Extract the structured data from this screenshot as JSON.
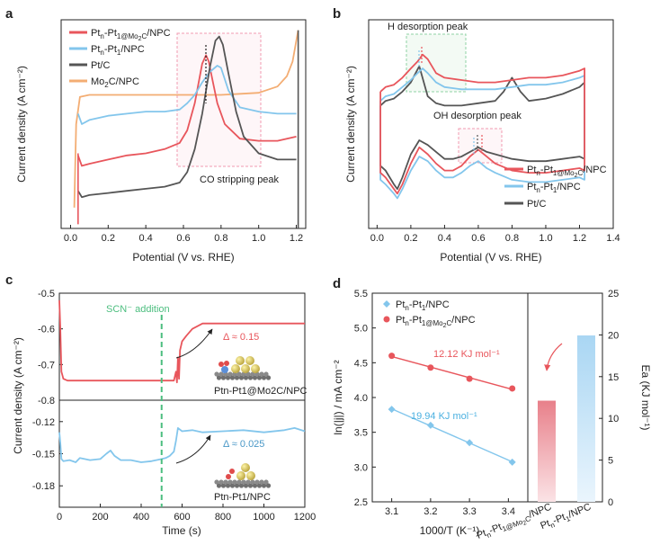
{
  "colors": {
    "red": "#e8565c",
    "blue": "#83c6ec",
    "gray": "#555555",
    "orange": "#f3ad73",
    "green": "#4cbe7f",
    "pink_box": "#f4a1b4",
    "green_box": "#8fd3a4",
    "bar_red": "#e99aa3",
    "bar_blue": "#b9ddf5"
  },
  "chart_data": [
    {
      "panel": "a",
      "type": "line",
      "xlabel": "Potential (V vs. RHE)",
      "ylabel": "Current density (A cm⁻²)",
      "xlim": [
        -0.05,
        1.25
      ],
      "x_ticks": [
        "0.0",
        "0.2",
        "0.4",
        "0.6",
        "0.8",
        "1.0",
        "1.2"
      ],
      "y_ticks_shown": false,
      "legend": [
        "Ptn-Pt1@Mo2C/NPC",
        "Ptn-Pt1/NPC",
        "Pt/C",
        "Mo2C/NPC"
      ],
      "annotation": "CO stripping peak",
      "series": [
        {
          "name": "Ptn-Pt1@Mo2C/NPC",
          "x": [
            0.04,
            0.06,
            0.1,
            0.2,
            0.3,
            0.4,
            0.5,
            0.58,
            0.62,
            0.66,
            0.7,
            0.72,
            0.735,
            0.75,
            0.78,
            0.82,
            0.9,
            1.0,
            1.1,
            1.2
          ],
          "y": [
            0.35,
            0.3,
            0.31,
            0.33,
            0.35,
            0.36,
            0.38,
            0.41,
            0.47,
            0.6,
            0.79,
            0.83,
            0.8,
            0.73,
            0.6,
            0.5,
            0.43,
            0.42,
            0.42,
            0.44
          ]
        },
        {
          "name": "Ptn-Pt1/NPC",
          "x": [
            0.04,
            0.06,
            0.1,
            0.2,
            0.3,
            0.4,
            0.5,
            0.58,
            0.62,
            0.66,
            0.7,
            0.74,
            0.78,
            0.8,
            0.84,
            0.9,
            1.0,
            1.1,
            1.2
          ],
          "y": [
            0.55,
            0.5,
            0.52,
            0.54,
            0.55,
            0.56,
            0.56,
            0.57,
            0.6,
            0.64,
            0.7,
            0.75,
            0.78,
            0.77,
            0.66,
            0.58,
            0.56,
            0.55,
            0.55
          ]
        },
        {
          "name": "Pt/C",
          "x": [
            0.04,
            0.06,
            0.1,
            0.2,
            0.3,
            0.4,
            0.5,
            0.58,
            0.62,
            0.66,
            0.7,
            0.74,
            0.77,
            0.79,
            0.81,
            0.84,
            0.88,
            0.92,
            1.0,
            1.1,
            1.2
          ],
          "y": [
            0.18,
            0.15,
            0.16,
            0.17,
            0.18,
            0.19,
            0.2,
            0.22,
            0.27,
            0.38,
            0.55,
            0.77,
            0.9,
            0.92,
            0.88,
            0.74,
            0.56,
            0.44,
            0.36,
            0.33,
            0.33
          ]
        },
        {
          "name": "Mo2C/NPC",
          "x": [
            0.02,
            0.03,
            0.05,
            0.1,
            0.2,
            0.4,
            0.6,
            0.8,
            1.0,
            1.1,
            1.15,
            1.18,
            1.21
          ],
          "y": [
            0.1,
            0.5,
            0.63,
            0.64,
            0.64,
            0.64,
            0.64,
            0.64,
            0.65,
            0.68,
            0.73,
            0.8,
            0.95
          ]
        }
      ]
    },
    {
      "panel": "b",
      "type": "line",
      "xlabel": "Potential (V vs. RHE)",
      "ylabel": "Current density (A cm⁻²)",
      "xlim": [
        -0.05,
        1.4
      ],
      "x_ticks": [
        "0.0",
        "0.2",
        "0.4",
        "0.6",
        "0.8",
        "1.0",
        "1.2",
        "1.4"
      ],
      "y_ticks_shown": false,
      "legend": [
        "Ptn-Pt1@Mo2C/NPC",
        "Ptn-Pt1/NPC",
        "Pt/C"
      ],
      "annotations": [
        "H desorption peak",
        "OH desorption peak"
      ],
      "series": [
        {
          "name": "Ptn-Pt1@Mo2C/NPC",
          "x": [
            0.02,
            0.05,
            0.1,
            0.15,
            0.2,
            0.24,
            0.27,
            0.3,
            0.35,
            0.4,
            0.5,
            0.6,
            0.7,
            0.8,
            0.9,
            1.0,
            1.1,
            1.2,
            1.23,
            1.23,
            1.2,
            1.1,
            1.0,
            0.9,
            0.8,
            0.7,
            0.65,
            0.6,
            0.55,
            0.5,
            0.45,
            0.4,
            0.35,
            0.3,
            0.25,
            0.2,
            0.15,
            0.12,
            0.1,
            0.05,
            0.02
          ],
          "y": [
            0.64,
            0.66,
            0.67,
            0.7,
            0.74,
            0.77,
            0.8,
            0.78,
            0.72,
            0.7,
            0.69,
            0.68,
            0.68,
            0.69,
            0.7,
            0.7,
            0.71,
            0.73,
            0.74,
            0.3,
            0.31,
            0.3,
            0.29,
            0.29,
            0.3,
            0.33,
            0.36,
            0.39,
            0.36,
            0.32,
            0.3,
            0.3,
            0.33,
            0.37,
            0.4,
            0.33,
            0.24,
            0.2,
            0.22,
            0.27,
            0.29
          ]
        },
        {
          "name": "Ptn-Pt1/NPC",
          "x": [
            0.02,
            0.05,
            0.1,
            0.15,
            0.2,
            0.24,
            0.27,
            0.3,
            0.35,
            0.4,
            0.5,
            0.6,
            0.7,
            0.8,
            0.9,
            1.0,
            1.1,
            1.2,
            1.23,
            1.23,
            1.2,
            1.1,
            1.0,
            0.9,
            0.8,
            0.7,
            0.65,
            0.6,
            0.55,
            0.5,
            0.45,
            0.4,
            0.35,
            0.3,
            0.25,
            0.2,
            0.15,
            0.12,
            0.1,
            0.05,
            0.02
          ],
          "y": [
            0.6,
            0.62,
            0.63,
            0.66,
            0.69,
            0.72,
            0.74,
            0.72,
            0.68,
            0.66,
            0.65,
            0.65,
            0.65,
            0.66,
            0.67,
            0.67,
            0.68,
            0.7,
            0.71,
            0.26,
            0.27,
            0.26,
            0.25,
            0.25,
            0.26,
            0.29,
            0.31,
            0.34,
            0.32,
            0.29,
            0.27,
            0.27,
            0.3,
            0.34,
            0.36,
            0.3,
            0.22,
            0.18,
            0.2,
            0.24,
            0.26
          ]
        },
        {
          "name": "Pt/C",
          "x": [
            0.02,
            0.05,
            0.1,
            0.15,
            0.2,
            0.25,
            0.3,
            0.35,
            0.4,
            0.5,
            0.6,
            0.7,
            0.75,
            0.8,
            0.85,
            0.9,
            1.0,
            1.1,
            1.2,
            1.23,
            1.23,
            1.2,
            1.1,
            1.0,
            0.9,
            0.8,
            0.7,
            0.65,
            0.6,
            0.55,
            0.5,
            0.45,
            0.4,
            0.35,
            0.3,
            0.25,
            0.2,
            0.15,
            0.12,
            0.1,
            0.05,
            0.02
          ],
          "y": [
            0.58,
            0.6,
            0.61,
            0.64,
            0.68,
            0.75,
            0.62,
            0.59,
            0.58,
            0.58,
            0.59,
            0.6,
            0.64,
            0.7,
            0.64,
            0.6,
            0.61,
            0.63,
            0.66,
            0.68,
            0.35,
            0.36,
            0.35,
            0.34,
            0.34,
            0.35,
            0.37,
            0.38,
            0.4,
            0.38,
            0.36,
            0.35,
            0.35,
            0.38,
            0.41,
            0.43,
            0.37,
            0.27,
            0.22,
            0.24,
            0.3,
            0.32
          ]
        }
      ]
    },
    {
      "panel": "c",
      "type": "line",
      "xlabel": "Time (s)",
      "ylabel": "Current density (A cm⁻²)",
      "xlim": [
        0,
        1200
      ],
      "x_ticks": [
        "0",
        "200",
        "400",
        "600",
        "800",
        "1000",
        "1200"
      ],
      "top": {
        "ylim": [
          -0.8,
          -0.5
        ],
        "y_ticks": [
          "-0.5",
          "-0.6",
          "-0.7",
          "-0.8"
        ],
        "label": "Ptn-Pt1@Mo2C/NPC",
        "delta": "Δ ≈ 0.15",
        "x": [
          0,
          5,
          10,
          20,
          40,
          100,
          200,
          300,
          400,
          480,
          500,
          510,
          520,
          560,
          570,
          575,
          580,
          585,
          590,
          600,
          620,
          650,
          700,
          800,
          1000,
          1200
        ],
        "y": [
          -0.52,
          -0.6,
          -0.72,
          -0.74,
          -0.745,
          -0.745,
          -0.745,
          -0.745,
          -0.745,
          -0.745,
          -0.745,
          -0.745,
          -0.745,
          -0.745,
          -0.72,
          -0.75,
          -0.68,
          -0.74,
          -0.66,
          -0.635,
          -0.62,
          -0.6,
          -0.585,
          -0.585,
          -0.585,
          -0.585
        ]
      },
      "bottom": {
        "ylim": [
          -0.2,
          -0.1
        ],
        "y_ticks": [
          "-0.12",
          "-0.15",
          "-0.18"
        ],
        "label": "Ptn-Pt1/NPC",
        "delta": "Δ ≈ 0.025",
        "x": [
          0,
          5,
          10,
          20,
          50,
          80,
          100,
          150,
          200,
          230,
          250,
          270,
          300,
          350,
          400,
          450,
          500,
          520,
          540,
          560,
          570,
          580,
          600,
          650,
          700,
          800,
          900,
          1000,
          1100,
          1150,
          1200
        ],
        "y": [
          -0.13,
          -0.14,
          -0.155,
          -0.157,
          -0.156,
          -0.158,
          -0.154,
          -0.156,
          -0.155,
          -0.15,
          -0.147,
          -0.152,
          -0.156,
          -0.156,
          -0.158,
          -0.157,
          -0.155,
          -0.154,
          -0.152,
          -0.148,
          -0.138,
          -0.126,
          -0.129,
          -0.128,
          -0.13,
          -0.129,
          -0.128,
          -0.13,
          -0.128,
          -0.126,
          -0.129
        ]
      },
      "annotation": "SCN⁻ addition",
      "annotation_x": 500
    },
    {
      "panel": "d",
      "type": "scatter",
      "xlabel": "1000/T (K⁻¹)",
      "ylabel_left": "ln(|j|) / mA cm⁻²",
      "ylabel_right": "Ea (KJ mol⁻¹)",
      "xlim": [
        3.05,
        3.45
      ],
      "ylim_left": [
        2.5,
        5.5
      ],
      "ylim_right": [
        0,
        25
      ],
      "x_ticks": [
        "3.1",
        "3.2",
        "3.3",
        "3.4"
      ],
      "y_ticks_left": [
        "2.5",
        "3.0",
        "3.5",
        "4.0",
        "4.5",
        "5.0",
        "5.5"
      ],
      "y_ticks_right": [
        "0",
        "5",
        "10",
        "15",
        "20",
        "25"
      ],
      "legend": [
        "Ptn-Pt1/NPC",
        "Ptn-Pt1@Mo2C/NPC"
      ],
      "series": [
        {
          "name": "Ptn-Pt1/NPC",
          "x": [
            3.1,
            3.2,
            3.3,
            3.41
          ],
          "y": [
            3.83,
            3.6,
            3.35,
            3.07
          ],
          "fit_label": "19.94 KJ mol⁻¹"
        },
        {
          "name": "Ptn-Pt1@Mo2C/NPC",
          "x": [
            3.1,
            3.2,
            3.3,
            3.41
          ],
          "y": [
            4.6,
            4.43,
            4.27,
            4.13
          ],
          "fit_label": "12.12 KJ mol⁻¹"
        }
      ],
      "bars": {
        "categories": [
          "Ptn-Pt1@Mo2C/NPC",
          "Ptn-Pt1/NPC"
        ],
        "values": [
          12.12,
          19.94
        ]
      }
    }
  ]
}
